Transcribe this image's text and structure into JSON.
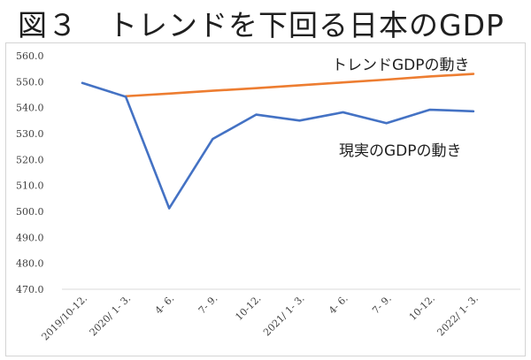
{
  "figure": {
    "title": "図３　トレンドを下回る日本のGDP"
  },
  "chart_data": {
    "type": "line",
    "title": "図３　トレンドを下回る日本のGDP",
    "xlabel": "",
    "ylabel": "",
    "ylim": [
      470,
      560
    ],
    "yticks": [
      "470.0",
      "480.0",
      "490.0",
      "500.0",
      "510.0",
      "520.0",
      "530.0",
      "540.0",
      "550.0",
      "560.0"
    ],
    "categories": [
      "2019/10-12.",
      "2020/ 1- 3.",
      "4- 6.",
      "7- 9.",
      "10-12.",
      "2021/ 1- 3.",
      "4- 6.",
      "7- 9.",
      "10-12.",
      "2022/ 1- 3."
    ],
    "grid": false,
    "legend": "none",
    "series": [
      {
        "name": "トレンドGDPの動き",
        "color": "#ED7D31",
        "values": [
          null,
          544.4,
          545.4,
          546.5,
          547.5,
          548.6,
          549.7,
          550.8,
          552.0,
          553.0
        ]
      },
      {
        "name": "現実のGDPの動き",
        "color": "#4472C4",
        "values": [
          549.5,
          544.2,
          501.2,
          527.9,
          537.3,
          535.0,
          538.2,
          534.0,
          539.2,
          538.6
        ]
      }
    ]
  }
}
